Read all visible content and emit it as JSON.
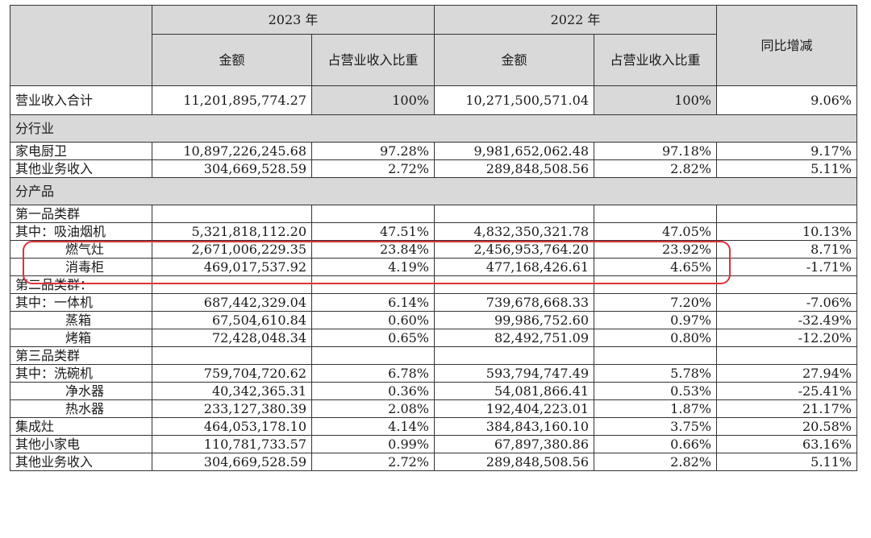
{
  "header": {
    "year_2023": "2023 年",
    "year_2022": "2022 年",
    "amount": "金额",
    "ratio": "占营业收入比重",
    "yoy": "同比增减"
  },
  "total": {
    "label": "营业收入合计",
    "amt_2023": "11,201,895,774.27",
    "pct_2023": "100%",
    "amt_2022": "10,271,500,571.04",
    "pct_2022": "100%",
    "yoy": "9.06%"
  },
  "by_industry": {
    "title": "分行业",
    "rows": [
      {
        "label": "家电厨卫",
        "amt_2023": "10,897,226,245.68",
        "pct_2023": "97.28%",
        "amt_2022": "9,981,652,062.48",
        "pct_2022": "97.18%",
        "yoy": "9.17%"
      },
      {
        "label": "其他业务收入",
        "amt_2023": "304,669,528.59",
        "pct_2023": "2.72%",
        "amt_2022": "289,848,508.56",
        "pct_2022": "2.82%",
        "yoy": "5.11%"
      }
    ]
  },
  "by_product": {
    "title": "分产品",
    "rows": [
      {
        "label": "第一品类群",
        "amt_2023": "",
        "pct_2023": "",
        "amt_2022": "",
        "pct_2022": "",
        "yoy": ""
      },
      {
        "label": "其中：吸油烟机",
        "amt_2023": "5,321,818,112.20",
        "pct_2023": "47.51%",
        "amt_2022": "4,832,350,321.78",
        "pct_2022": "47.05%",
        "yoy": "10.13%"
      },
      {
        "label": "燃气灶",
        "amt_2023": "2,671,006,229.35",
        "pct_2023": "23.84%",
        "amt_2022": "2,456,953,764.20",
        "pct_2022": "23.92%",
        "yoy": "8.71%"
      },
      {
        "label": "消毒柜",
        "amt_2023": "469,017,537.92",
        "pct_2023": "4.19%",
        "amt_2022": "477,168,426.61",
        "pct_2022": "4.65%",
        "yoy": "-1.71%"
      },
      {
        "label": "第二品类群：",
        "amt_2023": "",
        "pct_2023": "",
        "amt_2022": "",
        "pct_2022": "",
        "yoy": ""
      },
      {
        "label": "其中：一体机",
        "amt_2023": "687,442,329.04",
        "pct_2023": "6.14%",
        "amt_2022": "739,678,668.33",
        "pct_2022": "7.20%",
        "yoy": "-7.06%"
      },
      {
        "label": "蒸箱",
        "amt_2023": "67,504,610.84",
        "pct_2023": "0.60%",
        "amt_2022": "99,986,752.60",
        "pct_2022": "0.97%",
        "yoy": "-32.49%"
      },
      {
        "label": "烤箱",
        "amt_2023": "72,428,048.34",
        "pct_2023": "0.65%",
        "amt_2022": "82,492,751.09",
        "pct_2022": "0.80%",
        "yoy": "-12.20%"
      },
      {
        "label": "第三品类群",
        "amt_2023": "",
        "pct_2023": "",
        "amt_2022": "",
        "pct_2022": "",
        "yoy": ""
      },
      {
        "label": "其中：洗碗机",
        "amt_2023": "759,704,720.62",
        "pct_2023": "6.78%",
        "amt_2022": "593,794,747.49",
        "pct_2022": "5.78%",
        "yoy": "27.94%"
      },
      {
        "label": "净水器",
        "amt_2023": "40,342,365.31",
        "pct_2023": "0.36%",
        "amt_2022": "54,081,866.41",
        "pct_2022": "0.53%",
        "yoy": "-25.41%"
      },
      {
        "label": "热水器",
        "amt_2023": "233,127,380.39",
        "pct_2023": "2.08%",
        "amt_2022": "192,404,223.01",
        "pct_2022": "1.87%",
        "yoy": "21.17%"
      },
      {
        "label": "集成灶",
        "amt_2023": "464,053,178.10",
        "pct_2023": "4.14%",
        "amt_2022": "384,843,160.10",
        "pct_2022": "3.75%",
        "yoy": "20.58%"
      },
      {
        "label": "其他小家电",
        "amt_2023": "110,781,733.57",
        "pct_2023": "0.99%",
        "amt_2022": "67,897,380.86",
        "pct_2022": "0.66%",
        "yoy": "63.16%"
      },
      {
        "label": "其他业务收入",
        "amt_2023": "304,669,528.59",
        "pct_2023": "2.72%",
        "amt_2022": "289,848,508.56",
        "pct_2022": "2.82%",
        "yoy": "5.11%"
      }
    ]
  },
  "annotation": {
    "color": "#e0303a"
  }
}
